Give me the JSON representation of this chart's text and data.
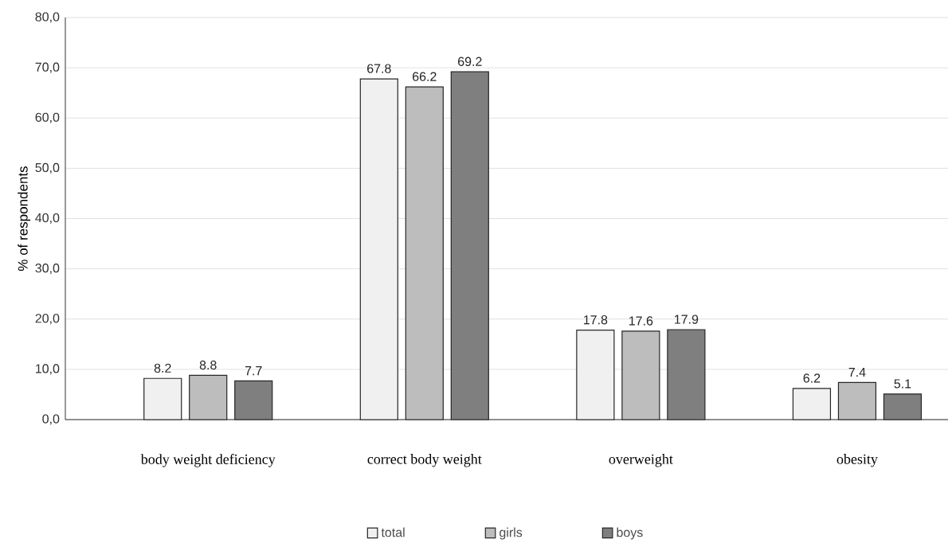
{
  "chart_data": {
    "type": "bar",
    "ylabel": "% of respondents",
    "categories": [
      "body weight deficiency",
      "correct body weight",
      "overweight",
      "obesity"
    ],
    "series": [
      {
        "name": "total",
        "color": "#f0f0f0",
        "values": [
          8.2,
          67.8,
          17.8,
          6.2
        ]
      },
      {
        "name": "girls",
        "color": "#bdbdbd",
        "values": [
          8.8,
          66.2,
          17.6,
          7.4
        ]
      },
      {
        "name": "boys",
        "color": "#7f7f7f",
        "values": [
          7.7,
          69.2,
          17.9,
          5.1
        ]
      }
    ],
    "ylim": [
      0,
      80
    ],
    "yticks": [
      {
        "value": 0,
        "label": "0,0"
      },
      {
        "value": 10,
        "label": "10,0"
      },
      {
        "value": 20,
        "label": "20,0"
      },
      {
        "value": 30,
        "label": "30,0"
      },
      {
        "value": 40,
        "label": "40,0"
      },
      {
        "value": 50,
        "label": "50,0"
      },
      {
        "value": 60,
        "label": "60,0"
      },
      {
        "value": 70,
        "label": "70,0"
      },
      {
        "value": 80,
        "label": "80,0"
      }
    ],
    "grid": "y",
    "legend": "bottom",
    "data_labels": true
  }
}
